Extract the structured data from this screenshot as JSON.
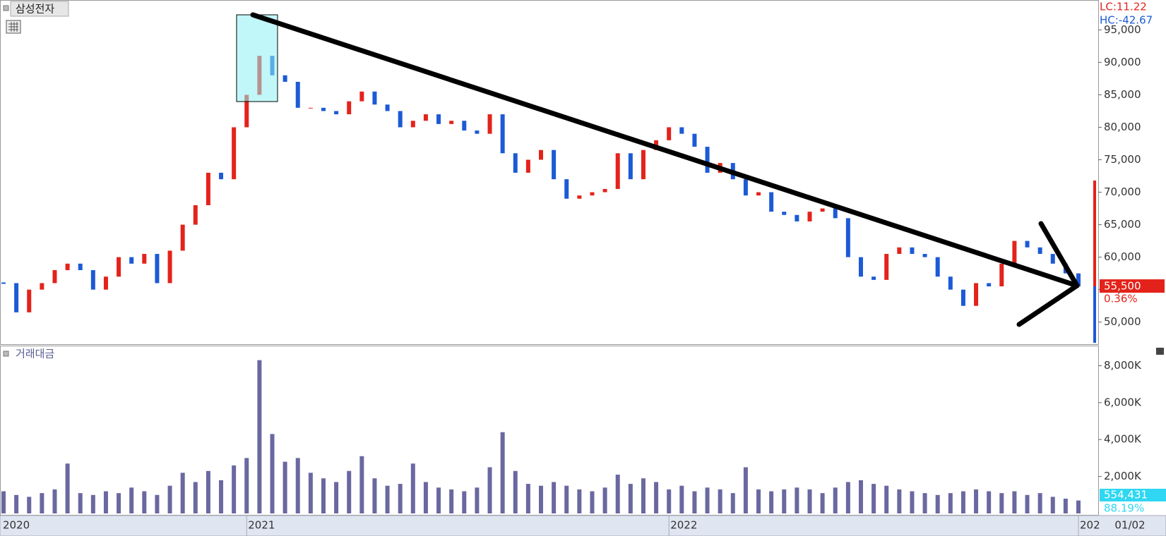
{
  "chart_data": [
    {
      "type": "candlestick",
      "title": "삼성전자",
      "categories": [
        null,
        null,
        null,
        null,
        null,
        null,
        null,
        null,
        null,
        null,
        null,
        null,
        null,
        null,
        null,
        null,
        null,
        null,
        null,
        "2021",
        null,
        null,
        null,
        null,
        null,
        null,
        null,
        null,
        null,
        null,
        null,
        null,
        null,
        null,
        null,
        null,
        null,
        null,
        null,
        null,
        null,
        null,
        null,
        null,
        null,
        null,
        null,
        null,
        null,
        null,
        null,
        null,
        "2022",
        null,
        null,
        null,
        null,
        null,
        null,
        null,
        null,
        null,
        null,
        null,
        null,
        null,
        null,
        null,
        null,
        null,
        null,
        null,
        null,
        null,
        null,
        null,
        null,
        null,
        null,
        null,
        null,
        null,
        null,
        null,
        "202"
      ],
      "first_label": "2020",
      "values": [
        56000,
        51500,
        55000,
        56000,
        58000,
        59000,
        58000,
        55000,
        57000,
        60000,
        59000,
        60500,
        56000,
        61000,
        65000,
        68000,
        73000,
        72000,
        80000,
        85000,
        91000,
        88000,
        87000,
        83000,
        83000,
        82500,
        82000,
        84000,
        85500,
        83500,
        82500,
        80000,
        81000,
        82000,
        80500,
        81000,
        79500,
        79000,
        82000,
        76000,
        73000,
        75000,
        76500,
        72000,
        69000,
        69500,
        70000,
        70500,
        76000,
        72000,
        76500,
        78000,
        80000,
        79000,
        77000,
        73000,
        74500,
        72000,
        69500,
        70000,
        67000,
        66500,
        65500,
        67000,
        67500,
        66000,
        60000,
        57000,
        56500,
        60500,
        61500,
        60500,
        60000,
        57000,
        55000,
        52500,
        56000,
        55500,
        59000,
        62500,
        61500,
        60500,
        59000,
        57500,
        55500
      ],
      "up_color": "#e3231b",
      "down_color": "#1c5ad6",
      "ylim": [
        46600,
        99600
      ],
      "yticks": [
        {
          "value": 50000,
          "label": "50,000"
        },
        {
          "value": 55000,
          "label": "55,000"
        },
        {
          "value": 60000,
          "label": "60,000"
        },
        {
          "value": 65000,
          "label": "65,000"
        },
        {
          "value": 70000,
          "label": "70,000"
        },
        {
          "value": 75000,
          "label": "75,000"
        },
        {
          "value": 80000,
          "label": "80,000"
        },
        {
          "value": 85000,
          "label": "85,000"
        },
        {
          "value": 90000,
          "label": "90,000"
        },
        {
          "value": 95000,
          "label": "95,000"
        }
      ],
      "last_label": "55,500",
      "change_label": "0.36%",
      "lc_label": "LC:11.22",
      "hc_label": "HC:-42.67",
      "date_label": "01/02"
    },
    {
      "type": "bar",
      "title": "거래대금",
      "color": "#6a68a0",
      "values": [
        1200,
        1000,
        900,
        1100,
        1300,
        2700,
        1100,
        1000,
        1200,
        1100,
        1400,
        1200,
        1000,
        1500,
        2200,
        1700,
        2300,
        1800,
        2600,
        3000,
        8300,
        4300,
        2800,
        3000,
        2200,
        1900,
        1700,
        2300,
        3100,
        1900,
        1500,
        1600,
        2700,
        1700,
        1400,
        1300,
        1200,
        1400,
        2500,
        4400,
        2300,
        1600,
        1500,
        1700,
        1500,
        1300,
        1200,
        1400,
        2100,
        1600,
        1900,
        1700,
        1300,
        1500,
        1200,
        1400,
        1300,
        1100,
        2500,
        1300,
        1200,
        1300,
        1400,
        1300,
        1100,
        1400,
        1700,
        1800,
        1600,
        1500,
        1300,
        1200,
        1100,
        1000,
        1100,
        1200,
        1300,
        1200,
        1100,
        1200,
        1000,
        1100,
        900,
        800,
        700
      ],
      "ylim": [
        0,
        9050
      ],
      "yticks": [
        {
          "value": 2000,
          "label": "2,000K"
        },
        {
          "value": 4000,
          "label": "4,000K"
        },
        {
          "value": 6000,
          "label": "6,000K"
        },
        {
          "value": 8000,
          "label": "8,000K"
        }
      ],
      "last_label": "554,431",
      "ratio_label": "88.19%"
    }
  ]
}
